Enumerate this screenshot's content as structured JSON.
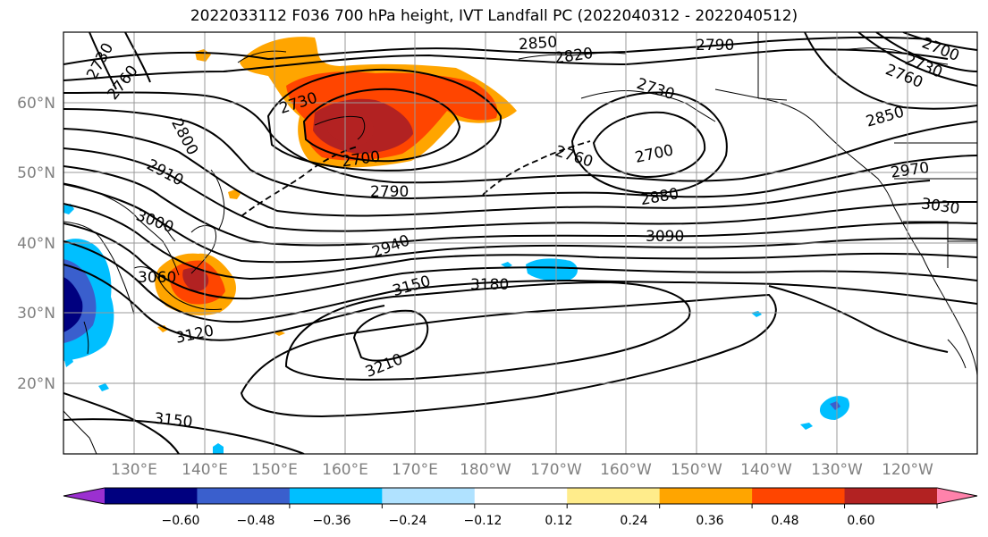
{
  "title": "2022033112 F036 700 hPa height, IVT Landfall PC (2022040312 - 2022040512)",
  "lat_labels": [
    "60°N",
    "50°N",
    "40°N",
    "30°N",
    "20°N"
  ],
  "lon_labels": [
    "130°E",
    "140°E",
    "150°E",
    "160°E",
    "170°E",
    "180°W",
    "170°W",
    "160°W",
    "150°W",
    "140°W",
    "130°W",
    "120°W"
  ],
  "colorbar": {
    "ticks": [
      "−0.60",
      "−0.48",
      "−0.36",
      "−0.24",
      "−0.12",
      "0.12",
      "0.24",
      "0.36",
      "0.48",
      "0.60"
    ],
    "colors": [
      "#9b30d0",
      "#00007f",
      "#3a5fcd",
      "#00bfff",
      "#b0e2ff",
      "#ffffff",
      "#ffec8b",
      "#ffa500",
      "#ff4500",
      "#b22222",
      "#ff82ab"
    ]
  },
  "contour_labels": [
    {
      "text": "2730"
    },
    {
      "text": "2760"
    },
    {
      "text": "2850"
    },
    {
      "text": "2820"
    },
    {
      "text": "2790"
    },
    {
      "text": "2700"
    },
    {
      "text": "2730"
    },
    {
      "text": "2760"
    },
    {
      "text": "2730"
    },
    {
      "text": "2800"
    },
    {
      "text": "2700"
    },
    {
      "text": "2730"
    },
    {
      "text": "2760"
    },
    {
      "text": "2700"
    },
    {
      "text": "2850"
    },
    {
      "text": "2910"
    },
    {
      "text": "2790"
    },
    {
      "text": "2880"
    },
    {
      "text": "2970"
    },
    {
      "text": "3000"
    },
    {
      "text": "3030"
    },
    {
      "text": "2940"
    },
    {
      "text": "3090"
    },
    {
      "text": "3060"
    },
    {
      "text": "3150"
    },
    {
      "text": "3180"
    },
    {
      "text": "3120"
    },
    {
      "text": "3210"
    },
    {
      "text": "3150"
    }
  ]
}
